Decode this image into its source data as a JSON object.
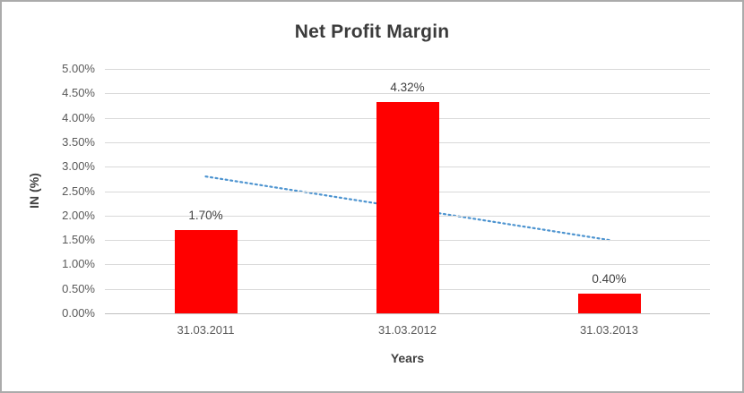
{
  "chart_data": {
    "type": "bar",
    "title": "Net Profit Margin",
    "categories": [
      "31.03.2011",
      "31.03.2012",
      "31.03.2013"
    ],
    "values": [
      1.7,
      4.32,
      0.4
    ],
    "data_labels": [
      "1.70%",
      "4.32%",
      "0.40%"
    ],
    "xlabel": "Years",
    "ylabel": "IN (%)",
    "ylim": [
      0,
      5
    ],
    "ytick_step": 0.5,
    "ytick_labels": [
      "0.00%",
      "0.50%",
      "1.00%",
      "1.50%",
      "2.00%",
      "2.50%",
      "3.00%",
      "3.50%",
      "4.00%",
      "4.50%",
      "5.00%"
    ],
    "grid": true,
    "legend": "none",
    "bar_color": "#ff0000",
    "trendline": {
      "style": "dotted",
      "color": "#4d94d0",
      "start_value": 2.8,
      "end_value": 1.5
    }
  }
}
